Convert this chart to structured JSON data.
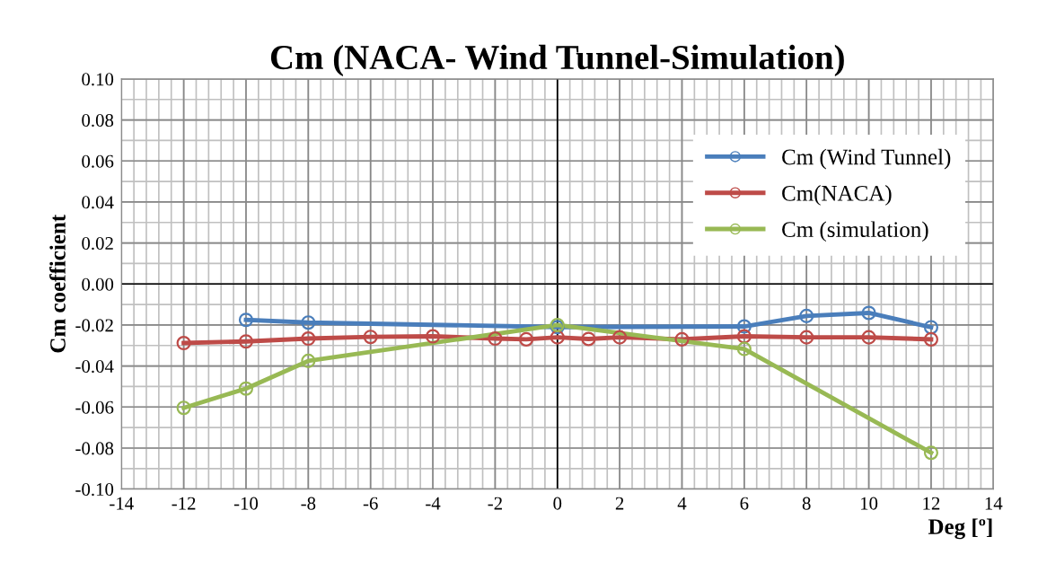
{
  "chart_data": {
    "type": "line",
    "title": "Cm (NACA- Wind Tunnel-Simulation)",
    "xlabel": "Deg [º]",
    "ylabel": "Cm coefficient",
    "xlim": [
      -14,
      14
    ],
    "xticks": [
      -14,
      -12,
      -10,
      -8,
      -6,
      -4,
      -2,
      0,
      2,
      4,
      6,
      8,
      10,
      12,
      14
    ],
    "ylim": [
      -0.1,
      0.1
    ],
    "yticks": [
      {
        "value": -0.1,
        "label": "-0.10"
      },
      {
        "value": -0.08,
        "label": "-0.08"
      },
      {
        "value": -0.06,
        "label": "-0.06"
      },
      {
        "value": -0.04,
        "label": "-0.04"
      },
      {
        "value": -0.02,
        "label": "-0.02"
      },
      {
        "value": 0,
        "label": "0.00"
      },
      {
        "value": 0.02,
        "label": "0.02"
      },
      {
        "value": 0.04,
        "label": "0.04"
      },
      {
        "value": 0.06,
        "label": "0.06"
      },
      {
        "value": 0.08,
        "label": "0.08"
      },
      {
        "value": 0.1,
        "label": "0.10"
      }
    ],
    "grid": true,
    "legend": "top right",
    "marker": "circle",
    "line_style": "solid",
    "series": [
      {
        "name": "Cm (Wind Tunnel)",
        "color": "#4a7ebb",
        "x": [
          -10,
          -8,
          0,
          6,
          8,
          10,
          12
        ],
        "values": [
          -0.0175,
          -0.0188,
          -0.021,
          -0.0207,
          -0.0156,
          -0.0141,
          -0.0211
        ]
      },
      {
        "name": "Cm(NACA)",
        "color": "#be4b48",
        "x": [
          -12,
          -10,
          -8,
          -6,
          -4,
          -2,
          -1,
          0,
          1,
          2,
          4,
          6,
          8,
          10,
          12
        ],
        "values": [
          -0.0288,
          -0.028,
          -0.0266,
          -0.0258,
          -0.0255,
          -0.0266,
          -0.027,
          -0.026,
          -0.0268,
          -0.026,
          -0.027,
          -0.0255,
          -0.026,
          -0.026,
          -0.027
        ]
      },
      {
        "name": "Cm (simulation)",
        "color": "#98b954",
        "x": [
          -12,
          -10,
          -8,
          0,
          6,
          12
        ],
        "values": [
          -0.0604,
          -0.051,
          -0.0375,
          -0.02,
          -0.0317,
          -0.0823
        ]
      }
    ]
  }
}
